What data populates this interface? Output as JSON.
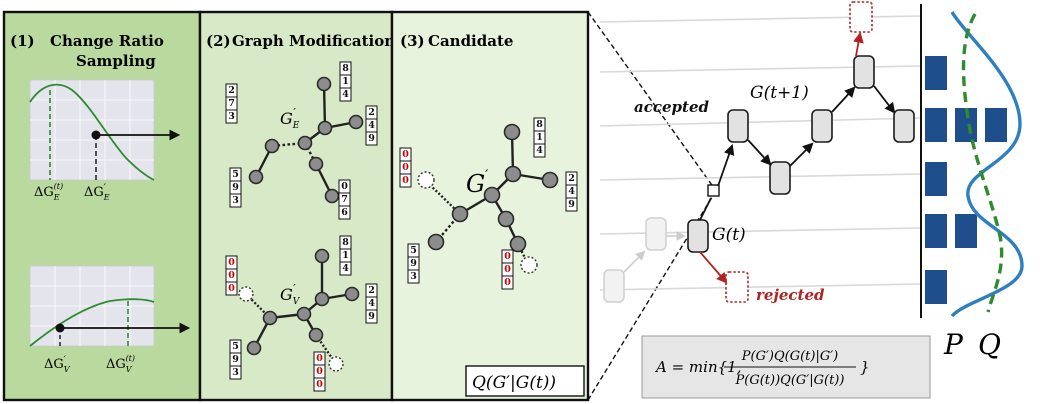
{
  "colors": {
    "panel1_bg": "#b9d99f",
    "panel2_bg": "#d7e9c7",
    "panel3_bg": "#e7f3dd",
    "plot_bg": "#e4e4ec",
    "curve_green": "#2e8b2e",
    "bar_blue": "#1f4e8c",
    "q_blue": "#2e7fbf",
    "rejected_red": "#b22222",
    "modified_red": "#cc0000"
  },
  "panels": {
    "change_ratio": {
      "label": "(1)",
      "title_line1": "Change Ratio",
      "title_line2": "Sampling",
      "plot_edge": {
        "tick_t_base": "ΔG",
        "tick_t_sub": "E",
        "tick_t_sup": "(t)",
        "tick_prime_base": "ΔG",
        "tick_prime_sub": "E",
        "tick_prime_sup": "′"
      },
      "plot_node": {
        "tick_prime_base": "ΔG",
        "tick_prime_sub": "V",
        "tick_prime_sup": "′",
        "tick_t_base": "ΔG",
        "tick_t_sub": "V",
        "tick_t_sup": "(t)"
      }
    },
    "graph_modification": {
      "label": "(2)",
      "title": "Graph Modification",
      "graph_e_base": "G",
      "graph_e_sub": "E",
      "graph_e_sup": "′",
      "graph_v_base": "G",
      "graph_v_sub": "V",
      "graph_v_sup": "′",
      "vec_top_left": [
        "2",
        "7",
        "3"
      ],
      "vec_top_right": [
        "8",
        "1",
        "4"
      ],
      "vec_right": [
        "2",
        "4",
        "9"
      ],
      "vec_bottom_left": [
        "5",
        "9",
        "3"
      ],
      "vec_bottom_right": [
        "0",
        "7",
        "6"
      ],
      "vec_v_red": [
        "0",
        "0",
        "0"
      ],
      "vec_v_top_right": [
        "8",
        "1",
        "4"
      ],
      "vec_v_right": [
        "2",
        "4",
        "9"
      ],
      "vec_v_bottom_left": [
        "5",
        "9",
        "3"
      ],
      "vec_v_bottom_red": [
        "0",
        "0",
        "0"
      ]
    },
    "candidate": {
      "label": "(3)",
      "title": "Candidate",
      "graph_base": "G",
      "graph_sup": "′",
      "vec_red": [
        "0",
        "0",
        "0"
      ],
      "vec_top": [
        "8",
        "1",
        "4"
      ],
      "vec_right": [
        "2",
        "4",
        "9"
      ],
      "vec_bottom_left": [
        "5",
        "9",
        "3"
      ],
      "vec_bottom_red": [
        "0",
        "0",
        "0"
      ],
      "proposal": "Q(G′|G(t))"
    }
  },
  "mcmc": {
    "accepted": "accepted",
    "rejected": "rejected",
    "state_next": "G(t+1)",
    "state_current": "G(t)",
    "formula": "A = min{1, P(G′)Q(G(t)|G′) / P(G(t))Q(G′|G(t))}",
    "formula_lhs": "A = min{1,",
    "formula_num": "P(G′)Q(G(t)|G′)",
    "formula_den": "P(G(t))Q(G′|G(t))",
    "formula_close": "}"
  },
  "distribution": {
    "label_p": "P",
    "label_q": "Q",
    "bar_rows": [
      {
        "level": 1,
        "count": 1
      },
      {
        "level": 2,
        "count": 3
      },
      {
        "level": 3,
        "count": 1
      },
      {
        "level": 4,
        "count": 2
      },
      {
        "level": 5,
        "count": 1
      }
    ]
  }
}
